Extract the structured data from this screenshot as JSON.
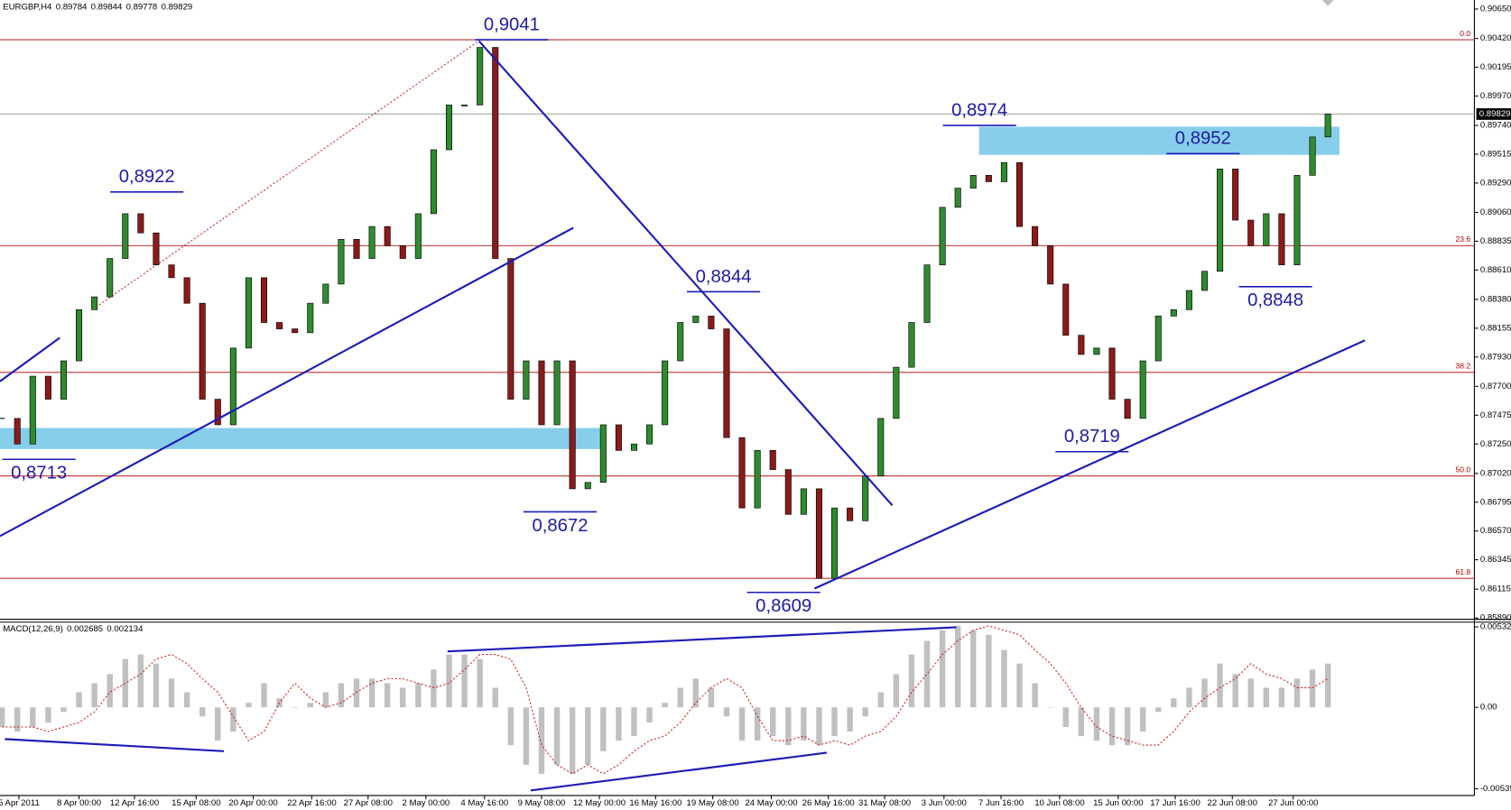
{
  "chart_data": [
    {
      "type": "candlestick",
      "title": "EURGBP,H4",
      "header_values": [
        0.89784,
        0.89844,
        0.89778,
        0.89829
      ],
      "values": [
        0.8745,
        0.8725,
        0.8778,
        0.876,
        0.879,
        0.883,
        0.884,
        0.887,
        0.8905,
        0.889,
        0.8865,
        0.8855,
        0.8835,
        0.876,
        0.874,
        0.88,
        0.8855,
        0.882,
        0.8815,
        0.8812,
        0.8835,
        0.885,
        0.8885,
        0.887,
        0.8895,
        0.888,
        0.887,
        0.8905,
        0.8955,
        0.899,
        0.899,
        0.9035,
        0.887,
        0.876,
        0.879,
        0.874,
        0.879,
        0.869,
        0.8695,
        0.874,
        0.872,
        0.8725,
        0.874,
        0.879,
        0.882,
        0.8825,
        0.8815,
        0.873,
        0.8675,
        0.872,
        0.8705,
        0.867,
        0.869,
        0.862,
        0.8675,
        0.8665,
        0.87,
        0.8745,
        0.8785,
        0.882,
        0.8865,
        0.891,
        0.8925,
        0.8935,
        0.893,
        0.8945,
        0.8895,
        0.888,
        0.885,
        0.881,
        0.8795,
        0.88,
        0.876,
        0.8745,
        0.879,
        0.8825,
        0.883,
        0.8845,
        0.886,
        0.894,
        0.89,
        0.888,
        0.8905,
        0.8865,
        0.8935,
        0.8965,
        0.8983
      ],
      "up_color": "#2e8b2e",
      "down_color": "#8b1a1a",
      "last_price": 0.89829,
      "xlim": [
        -0.125,
        95.5
      ],
      "ylim": [
        0.8588,
        0.9072
      ],
      "yticks": [
        {
          "value": 0.9065,
          "label": "0.90650"
        },
        {
          "value": 0.9042,
          "label": "0.90420"
        },
        0.90195,
        {
          "value": 0.8997,
          "label": "0.89970"
        },
        {
          "value": 0.8974,
          "label": "0.89740"
        },
        0.89515,
        {
          "value": 0.8929,
          "label": "0.89290"
        },
        {
          "value": 0.8906,
          "label": "0.89060"
        },
        0.88835,
        {
          "value": 0.8861,
          "label": "0.88610"
        },
        {
          "value": 0.8838,
          "label": "0.88380"
        },
        0.88155,
        {
          "value": 0.8793,
          "label": "0.87930"
        },
        {
          "value": 0.877,
          "label": "0.87700"
        },
        0.87475,
        {
          "value": 0.8725,
          "label": "0.87250"
        },
        {
          "value": 0.8702,
          "label": "0.87020"
        },
        0.86795,
        {
          "value": 0.8657,
          "label": "0.86570"
        },
        0.86345,
        0.86115,
        {
          "value": 0.8589,
          "label": "0.85890"
        }
      ],
      "xticks": [
        {
          "value": 1.1,
          "label": "5 Apr 2011"
        },
        {
          "value": 5,
          "label": "8 Apr 00:00"
        },
        {
          "value": 8.6,
          "label": "12 Apr 16:00"
        },
        {
          "value": 12.6,
          "label": "15 Apr 08:00"
        },
        {
          "value": 16.3,
          "label": "20 Apr 00:00"
        },
        {
          "value": 20.1,
          "label": "22 Apr 16:00"
        },
        {
          "value": 23.75,
          "label": "27 Apr 08:00"
        },
        {
          "value": 27.5,
          "label": "2 May 00:00"
        },
        {
          "value": 31.3,
          "label": "4 May 16:00"
        },
        {
          "value": 35,
          "label": "9 May 08:00"
        },
        {
          "value": 38.75,
          "label": "12 May 00:00"
        },
        {
          "value": 42.4,
          "label": "16 May 16:00"
        },
        {
          "value": 46.1,
          "label": "19 May 08:00"
        },
        {
          "value": 49.9,
          "label": "24 May 00:00"
        },
        {
          "value": 53.6,
          "label": "26 May 16:00"
        },
        {
          "value": 57.25,
          "label": "31 May 08:00"
        },
        {
          "value": 61.1,
          "label": "3 Jun 00:00"
        },
        {
          "value": 64.8,
          "label": "7 Jun 16:00"
        },
        {
          "value": 68.6,
          "label": "10 Jun 08:00"
        },
        {
          "value": 72.4,
          "label": "15 Jun 00:00"
        },
        {
          "value": 76.1,
          "label": "17 Jun 16:00"
        },
        {
          "value": 79.8,
          "label": "22 Jun 08:00"
        },
        {
          "value": 83.75,
          "label": "27 Jun 00:00"
        }
      ],
      "fib_color": "#c03030",
      "fib_levels": [
        {
          "label": "0.0",
          "price": 0.9041
        },
        {
          "label": "23.6",
          "price": 0.888
        },
        {
          "label": "38.2",
          "price": 0.8781
        },
        {
          "label": "50.0",
          "price": 0.87
        },
        {
          "label": "61.8",
          "price": 0.862
        }
      ],
      "zone_color": "#87ceeb",
      "zones": [
        {
          "x": [
            -0.125,
            39
          ],
          "y": [
            0.8721,
            0.87375
          ]
        },
        {
          "x": [
            63.375,
            86.75
          ],
          "y": [
            0.8951,
            0.8973
          ]
        }
      ],
      "trendline_color": "#1c1cb8",
      "trendlines": [
        {
          "x": [
            -0.125,
            37.06
          ],
          "y": [
            0.8653,
            0.8894
          ]
        },
        {
          "x": [
            30.94,
            57.75
          ],
          "y": [
            0.904,
            0.8677
          ]
        },
        {
          "x": [
            52.7,
            88.4
          ],
          "y": [
            0.8612,
            0.8806
          ]
        },
        {
          "x": [
            -0.125,
            3.75
          ],
          "y": [
            0.8774,
            0.8808
          ]
        }
      ],
      "fib_trend": {
        "x": [
          6.1,
          30.94
        ],
        "y": [
          0.8832,
          0.904
        ]
      },
      "annotations": [
        {
          "label": "0,9041",
          "price": 0.9041,
          "index": 33.06,
          "placement": "above"
        },
        {
          "label": "0,8922",
          "price": 0.8922,
          "index": 9.4,
          "placement": "above"
        },
        {
          "label": "0,8844",
          "price": 0.8844,
          "index": 46.8,
          "placement": "above"
        },
        {
          "label": "0,8974",
          "price": 0.8974,
          "index": 63.4,
          "placement": "above"
        },
        {
          "label": "0,8952",
          "price": 0.8952,
          "index": 77.9,
          "placement": "above"
        },
        {
          "label": "0,8713",
          "price": 0.8713,
          "index": 2.4,
          "placement": "below"
        },
        {
          "label": "0,8672",
          "price": 0.8672,
          "index": 36.2,
          "placement": "below"
        },
        {
          "label": "0,8609",
          "price": 0.8609,
          "index": 50.7,
          "placement": "below"
        },
        {
          "label": "0,8719",
          "price": 0.8719,
          "index": 70.7,
          "placement": "above"
        },
        {
          "label": "0,8848",
          "price": 0.8848,
          "index": 82.6,
          "placement": "below"
        }
      ]
    },
    {
      "type": "macd",
      "title": "MACD(12,26,9)",
      "header_values": [
        0.002685,
        0.002134
      ],
      "series": [
        {
          "name": "histogram",
          "color": "#c0c0c0",
          "values": [
            -0.0013,
            -0.0016,
            -0.0013,
            -0.001,
            -0.0003,
            0.001,
            0.0016,
            0.0022,
            0.0032,
            0.0035,
            0.0029,
            0.0019,
            0.001,
            -0.0006,
            -0.0022,
            -0.0016,
            0.0003,
            0.0016,
            0.0006,
            0,
            0.0003,
            0.001,
            0.0016,
            0.0019,
            0.0019,
            0.0016,
            0.0013,
            0.0016,
            0.0025,
            0.0035,
            0.0035,
            0.0032,
            0.0013,
            -0.0025,
            -0.0038,
            -0.0044,
            -0.0038,
            -0.0044,
            -0.0038,
            -0.0029,
            -0.0022,
            -0.0019,
            -0.001,
            0.0003,
            0.0013,
            0.0019,
            0.0013,
            -0.0006,
            -0.0022,
            -0.0022,
            -0.0019,
            -0.0025,
            -0.0022,
            -0.0025,
            -0.0019,
            -0.0016,
            -0.0006,
            0.001,
            0.0022,
            0.0035,
            0.0044,
            0.0051,
            0.0054,
            0.0051,
            0.0048,
            0.0038,
            0.0029,
            0.0016,
            0,
            -0.0013,
            -0.0019,
            -0.0022,
            -0.0025,
            -0.0025,
            -0.0016,
            -0.0003,
            0.0006,
            0.0013,
            0.0019,
            0.0029,
            0.0022,
            0.0019,
            0.0013,
            0.0013,
            0.0019,
            0.0025,
            0.0029
          ]
        },
        {
          "name": "signal",
          "color": "#d02020",
          "values": [
            -0.0013,
            -0.0013,
            -0.0013,
            -0.0016,
            -0.0013,
            -0.001,
            -0.0003,
            0.001,
            0.0016,
            0.0022,
            0.0032,
            0.0035,
            0.0029,
            0.0019,
            0.001,
            -0.0006,
            -0.0022,
            -0.0016,
            0.0003,
            0.0016,
            0.0006,
            0,
            0.0003,
            0.001,
            0.0016,
            0.0019,
            0.0019,
            0.0016,
            0.0013,
            0.0016,
            0.0025,
            0.0035,
            0.0035,
            0.0032,
            0.0013,
            -0.0025,
            -0.0038,
            -0.0044,
            -0.0038,
            -0.0044,
            -0.0038,
            -0.0029,
            -0.0022,
            -0.0019,
            -0.001,
            0.0003,
            0.0013,
            0.0019,
            0.0013,
            -0.0006,
            -0.0022,
            -0.0022,
            -0.0019,
            -0.0025,
            -0.0022,
            -0.0025,
            -0.0019,
            -0.0016,
            -0.0006,
            0.001,
            0.0022,
            0.0035,
            0.0044,
            0.0051,
            0.0054,
            0.0051,
            0.0048,
            0.0038,
            0.0029,
            0.0016,
            0,
            -0.0013,
            -0.0019,
            -0.0022,
            -0.0025,
            -0.0025,
            -0.0016,
            -0.0003,
            0.0006,
            0.0013,
            0.0019,
            0.0029,
            0.0022,
            0.0019,
            0.0013,
            0.0013,
            0.0019
          ]
        }
      ],
      "xlim": [
        -0.125,
        95.5
      ],
      "ylim": [
        -0.00577,
        0.00564
      ],
      "yticks": [
        0.005327,
        {
          "value": 0,
          "label": "0.00"
        },
        -0.00539
      ],
      "trendline_color": "#1c1cb8",
      "trendlines": [
        {
          "x": [
            0.19,
            14.4
          ],
          "y": [
            -0.0021,
            -0.0029
          ]
        },
        {
          "x": [
            28.9,
            61.9
          ],
          "y": [
            0.0037,
            0.0053
          ]
        },
        {
          "x": [
            34.3,
            53.5
          ],
          "y": [
            -0.0055,
            -0.003
          ]
        }
      ]
    }
  ]
}
